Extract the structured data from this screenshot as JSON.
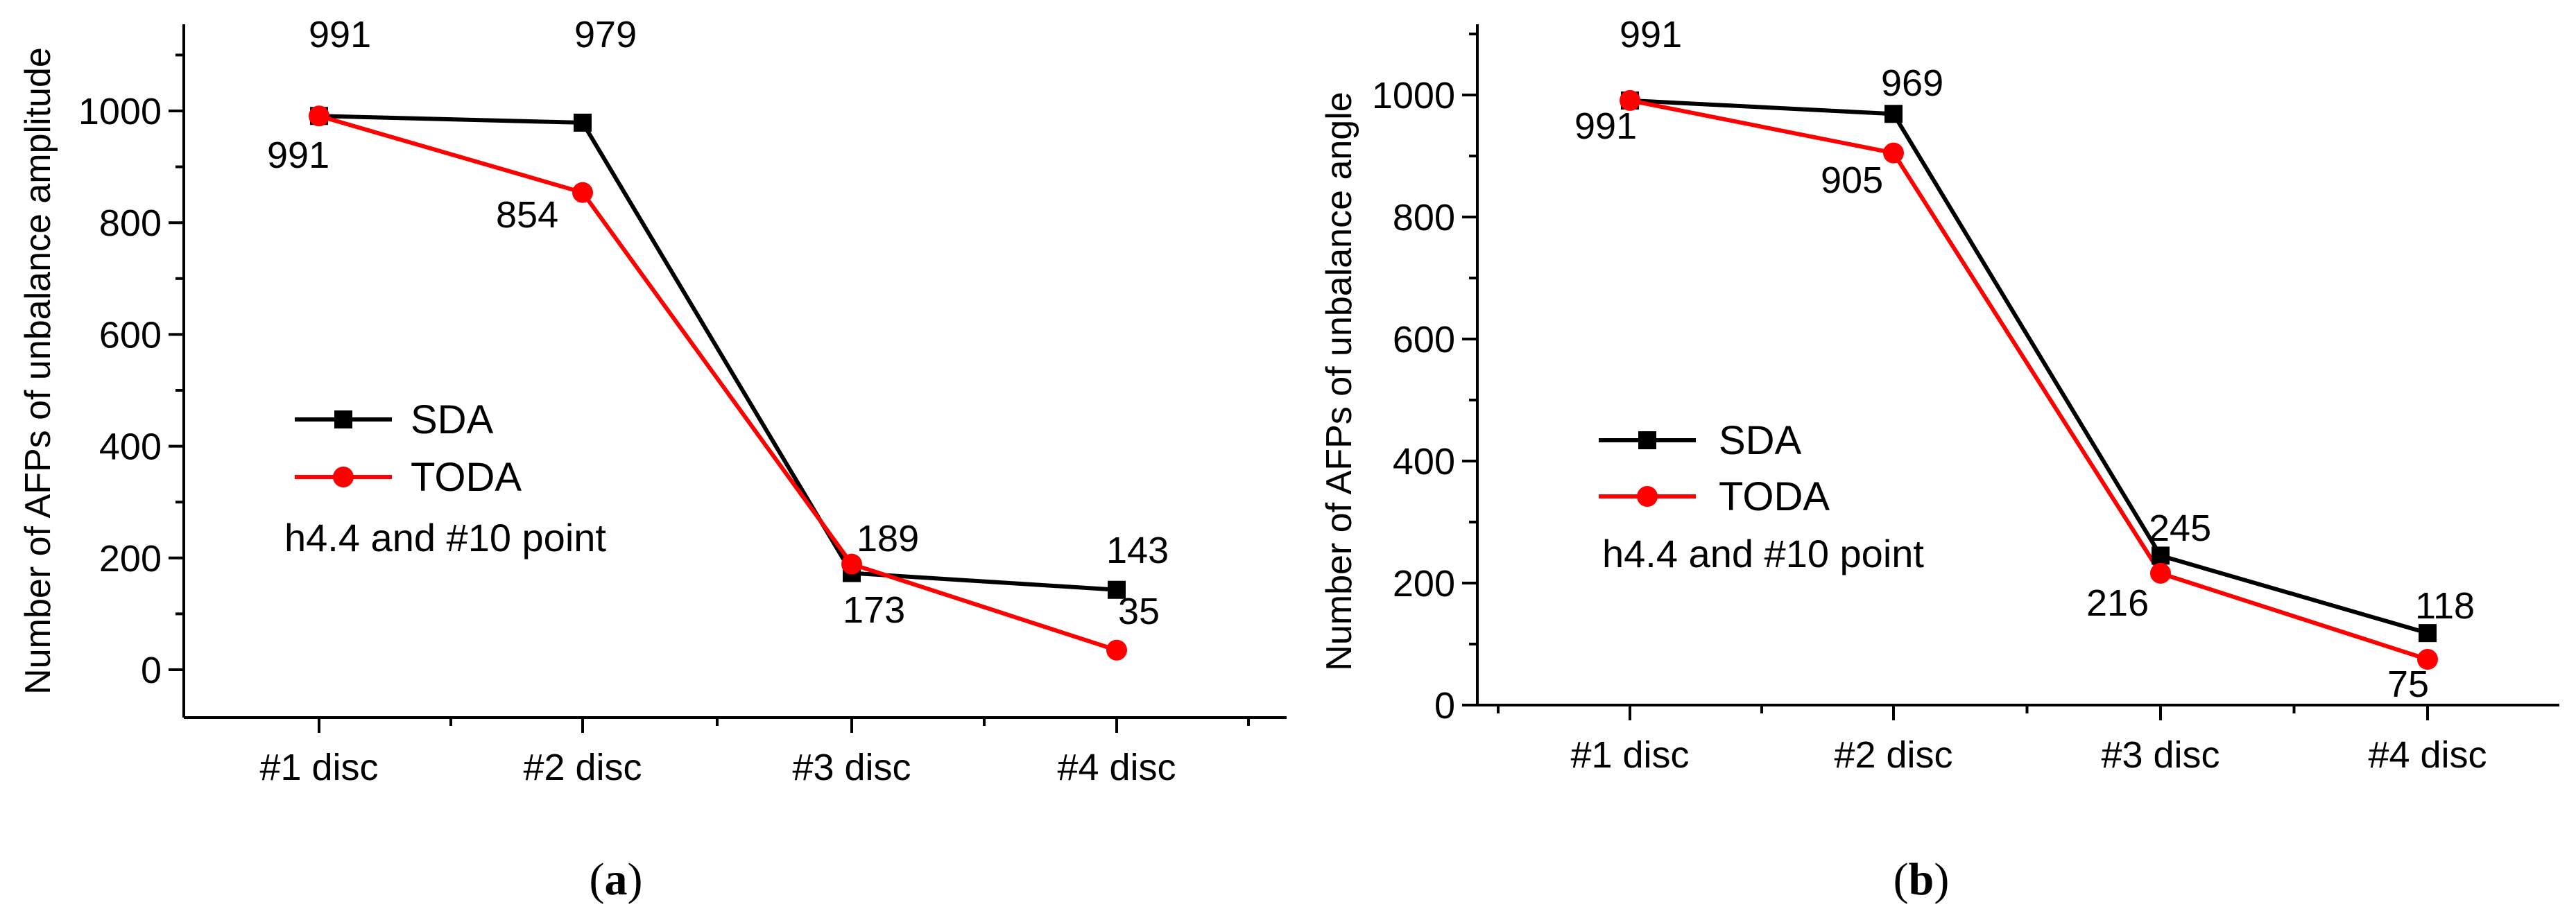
{
  "chart_data": [
    {
      "type": "line",
      "panel_label": "a",
      "ylabel": "Number of AFPs of unbalance amplitude",
      "categories": [
        "#1 disc",
        "#2 disc",
        "#3 disc",
        "#4 disc"
      ],
      "ylim": [
        -100,
        1100
      ],
      "yticks": [
        0,
        200,
        400,
        600,
        800,
        1000
      ],
      "legend_position": "center-left",
      "annotation": "h4.4 and #10 point",
      "series": [
        {
          "name": "SDA",
          "color": "#000000",
          "marker": "square",
          "values": [
            991,
            979,
            173,
            143
          ],
          "labels": [
            "991",
            "979",
            "173",
            "143"
          ]
        },
        {
          "name": "TODA",
          "color": "#ff0000",
          "marker": "circle",
          "values": [
            991,
            854,
            189,
            35
          ],
          "labels": [
            "991",
            "854",
            "189",
            "35"
          ]
        }
      ]
    },
    {
      "type": "line",
      "panel_label": "b",
      "ylabel": "Number of AFPs of unbalance angle",
      "categories": [
        "#1 disc",
        "#2 disc",
        "#3 disc",
        "#4 disc"
      ],
      "ylim": [
        0,
        1100
      ],
      "yticks": [
        0,
        200,
        400,
        600,
        800,
        1000
      ],
      "legend_position": "center-left",
      "annotation": "h4.4 and #10 point",
      "series": [
        {
          "name": "SDA",
          "color": "#000000",
          "marker": "square",
          "values": [
            991,
            969,
            245,
            118
          ],
          "labels": [
            "991",
            "969",
            "245",
            "118"
          ]
        },
        {
          "name": "TODA",
          "color": "#ff0000",
          "marker": "circle",
          "values": [
            991,
            905,
            216,
            75
          ],
          "labels": [
            "991",
            "905",
            "216",
            "75"
          ]
        }
      ]
    }
  ]
}
